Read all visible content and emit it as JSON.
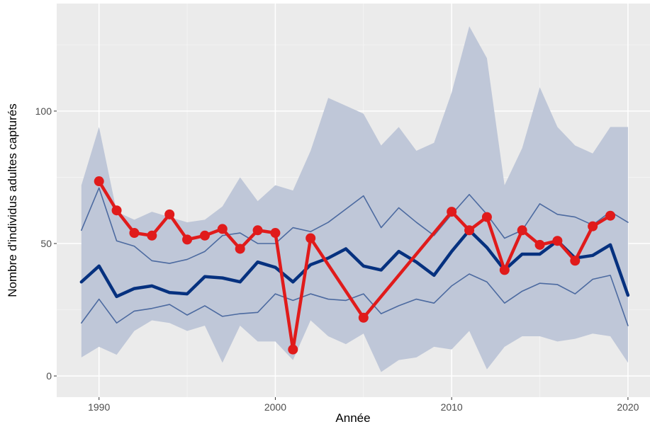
{
  "chart_data": {
    "type": "line",
    "x_label": "Année",
    "y_label": "Nombre d'individus adultes capturés",
    "x": [
      1989,
      1990,
      1991,
      1992,
      1993,
      1994,
      1995,
      1996,
      1997,
      1998,
      1999,
      2000,
      2001,
      2002,
      2003,
      2004,
      2005,
      2006,
      2007,
      2008,
      2009,
      2010,
      2011,
      2012,
      2013,
      2014,
      2015,
      2016,
      2017,
      2018,
      2019,
      2020
    ],
    "band": {
      "color": "#bfc7d8",
      "upper": [
        72,
        94,
        62,
        59,
        62,
        60,
        58,
        59,
        64,
        75,
        66,
        72,
        70,
        85,
        105,
        102,
        99,
        87,
        94,
        85,
        88,
        107,
        132,
        120,
        72,
        86,
        109,
        94,
        87,
        84,
        94,
        94
      ],
      "lower": [
        7,
        11,
        8,
        17,
        21,
        20,
        17,
        19,
        5,
        19,
        13,
        13,
        6,
        21,
        15,
        12,
        16,
        1.5,
        6,
        7,
        11,
        10,
        17,
        2.5,
        11,
        15,
        15,
        13,
        14,
        16,
        15,
        5
      ]
    },
    "series": [
      {
        "color": "#4c6aa0",
        "width": 1.6,
        "values": [
          55,
          71,
          51,
          49,
          43.5,
          42.5,
          44,
          47,
          53,
          54,
          50,
          50,
          56,
          54.5,
          58,
          63,
          68,
          56,
          63.5,
          58,
          53,
          61,
          68.5,
          61,
          52,
          55,
          65,
          61,
          60,
          57,
          62,
          58
        ]
      },
      {
        "color": "#4c6aa0",
        "width": 1.6,
        "values": [
          20,
          29,
          20,
          24.5,
          25.5,
          27,
          23,
          26.5,
          22.5,
          23.5,
          24,
          31,
          28.5,
          31,
          29,
          28.5,
          31,
          23.5,
          26.5,
          29,
          27.5,
          34,
          38.5,
          35.5,
          27.5,
          32,
          35,
          34.5,
          31,
          36.5,
          38,
          19
        ]
      },
      {
        "color": "#06317f",
        "width": 4.5,
        "values": [
          35.5,
          41.5,
          30,
          33,
          34,
          31.5,
          31,
          37.5,
          37,
          35.5,
          43,
          41,
          35.5,
          42,
          44.5,
          48,
          41.5,
          40,
          47,
          43,
          38,
          47,
          55,
          48.5,
          40,
          46,
          46,
          51,
          44.5,
          45.5,
          49.5,
          30.5
        ]
      }
    ],
    "observed": {
      "color": "#e01b1b",
      "x": [
        1990,
        1991,
        1992,
        1993,
        1994,
        1995,
        1996,
        1997,
        1998,
        1999,
        2000,
        2001,
        2002,
        2005,
        2010,
        2011,
        2012,
        2013,
        2014,
        2015,
        2016,
        2017,
        2018,
        2019
      ],
      "values": [
        73.5,
        62.5,
        54,
        53,
        61,
        51.5,
        53,
        55.5,
        48,
        55,
        54,
        10,
        52,
        22,
        62,
        55,
        60,
        40,
        55,
        49.5,
        51,
        43.5,
        56.5,
        60.5
      ]
    },
    "xlim": [
      1987.6,
      2021.25
    ],
    "ylim": [
      -8,
      140.6
    ],
    "xticks": [
      1990,
      2000,
      2010,
      2020
    ],
    "yticks": [
      0,
      50,
      100
    ],
    "grid": true
  }
}
